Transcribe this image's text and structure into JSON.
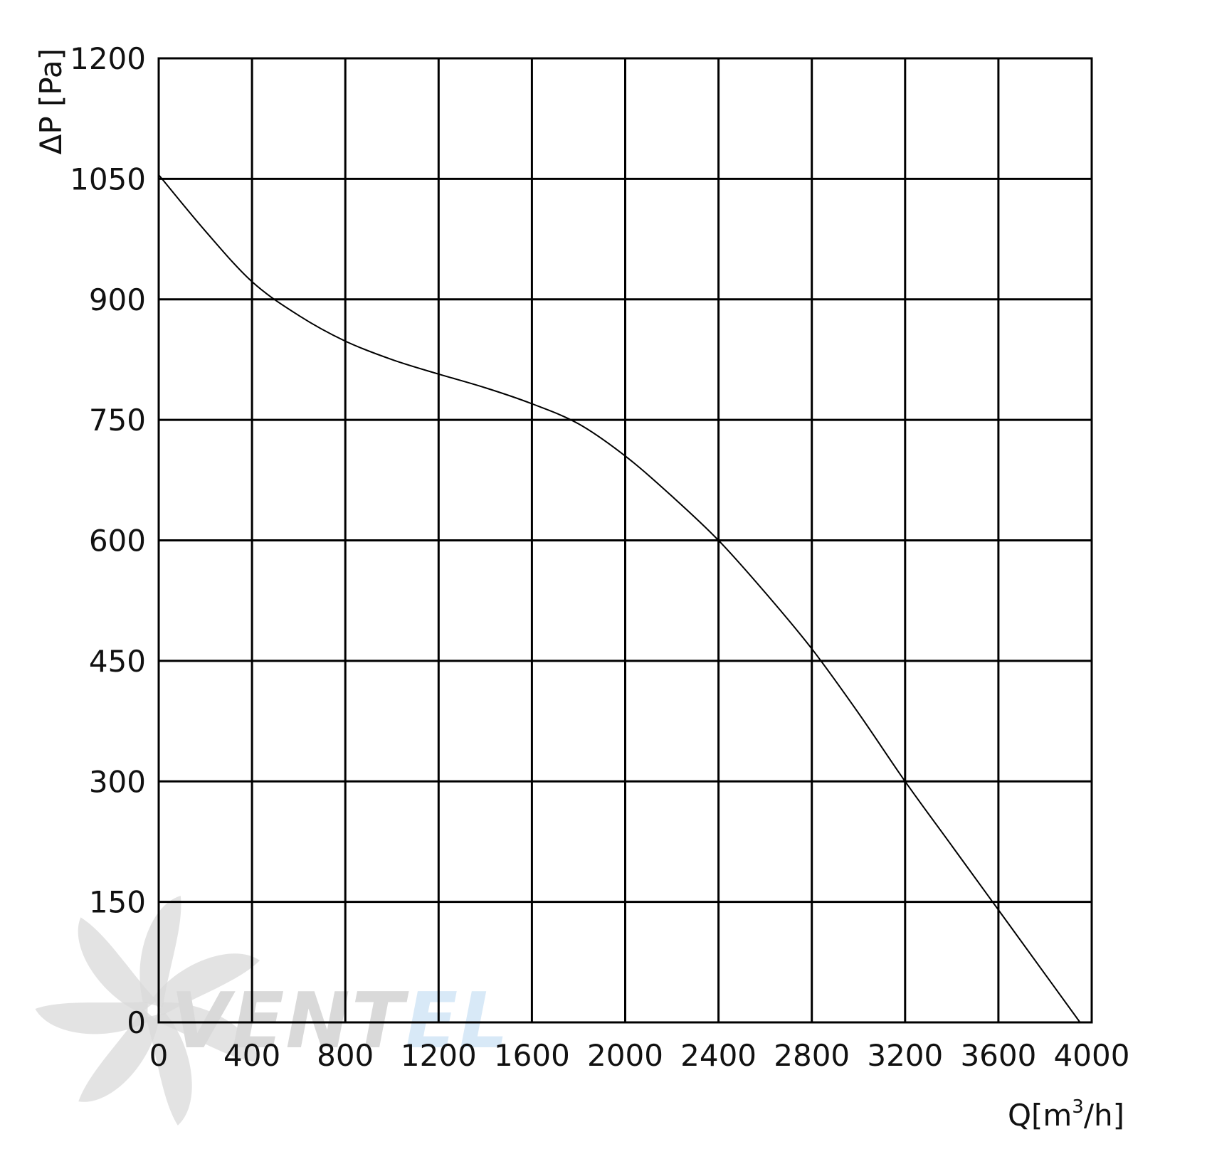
{
  "chart_data": {
    "type": "line",
    "title": "",
    "xlabel": {
      "prefix": "Q[m",
      "superscript": "3",
      "suffix": "/h]"
    },
    "ylabel": "ΔP [Pa]",
    "xlim": [
      0,
      4000
    ],
    "ylim": [
      0,
      1200
    ],
    "x_ticks": [
      "0",
      "400",
      "800",
      "1200",
      "1600",
      "2000",
      "2400",
      "2800",
      "3200",
      "3600",
      "4000"
    ],
    "y_ticks": [
      "0",
      "150",
      "300",
      "450",
      "600",
      "750",
      "900",
      "1050",
      "1200"
    ],
    "x_tick_values": [
      0,
      400,
      800,
      1200,
      1600,
      2000,
      2400,
      2800,
      3200,
      3600,
      4000
    ],
    "y_tick_values": [
      0,
      150,
      300,
      450,
      600,
      750,
      900,
      1050,
      1200
    ],
    "grid": true,
    "colors": {
      "curve": "#000000",
      "grid": "#000000",
      "watermark_gray": "#d9d9d9",
      "watermark_blue": "#d8e9f7"
    },
    "series": [
      {
        "x": [
          0,
          200,
          400,
          600,
          800,
          1000,
          1200,
          1400,
          1600,
          1800,
          2000,
          2200,
          2400,
          2600,
          2800,
          3000,
          3200,
          3400,
          3600,
          3800,
          3950
        ],
        "y": [
          1055,
          985,
          922,
          880,
          848,
          825,
          807,
          790,
          770,
          745,
          705,
          655,
          600,
          535,
          465,
          385,
          300,
          220,
          140,
          60,
          0
        ]
      }
    ]
  },
  "watermark": {
    "logo": "fan-logo",
    "text_part1": "VENT",
    "text_part2": "EL"
  }
}
